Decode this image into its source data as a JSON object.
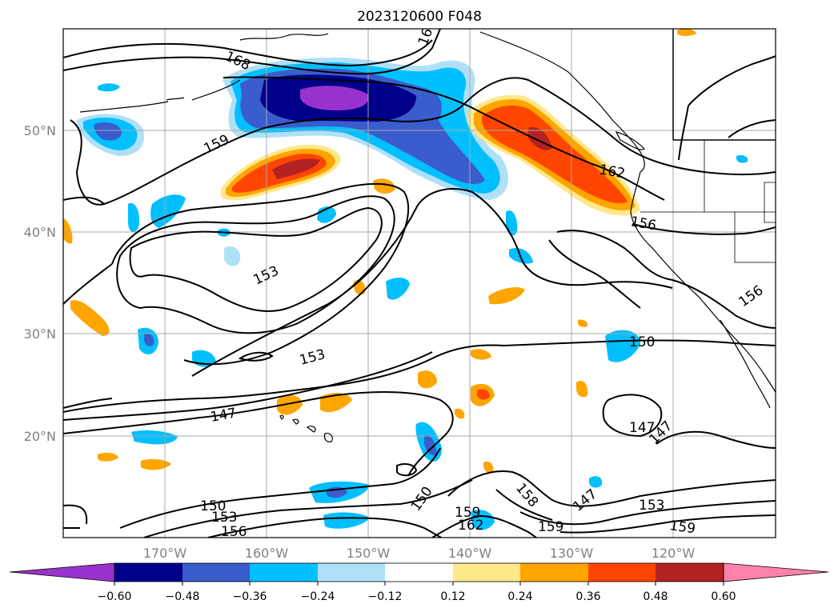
{
  "title": "2023120600 F048",
  "x_ticks": [
    "170°W",
    "160°W",
    "150°W",
    "140°W",
    "130°W",
    "120°W"
  ],
  "y_ticks": [
    "50°N",
    "40°N",
    "30°N",
    "20°N"
  ],
  "contour_labels": [
    "168",
    "159",
    "153",
    "153",
    "147",
    "162",
    "156",
    "156",
    "150",
    "147",
    "147",
    "150",
    "153",
    "156",
    "150",
    "159",
    "162",
    "158",
    "159",
    "147",
    "153",
    "159",
    "16"
  ],
  "colorbar": {
    "ticks": [
      "−0.60",
      "−0.48",
      "−0.36",
      "−0.24",
      "−0.12",
      "0.12",
      "0.24",
      "0.36",
      "0.48",
      "0.60"
    ],
    "colors": [
      "#9932cc",
      "#00008b",
      "#3a5ccc",
      "#00bfff",
      "#b0e0f8",
      "#ffffff",
      "#ffe88a",
      "#ffa500",
      "#ff4500",
      "#b22222",
      "#ff82ab"
    ]
  },
  "colors": {
    "purple": "#9932cc",
    "navy": "#00008b",
    "royal": "#3a5ccc",
    "sky": "#00bfff",
    "pale_blue": "#b0e0f8",
    "pale_yellow": "#ffe88a",
    "orange": "#ffa500",
    "red_orange": "#ff4500",
    "firebrick": "#b22222",
    "pink": "#ff82ab",
    "grid": "#a9a9a9"
  }
}
